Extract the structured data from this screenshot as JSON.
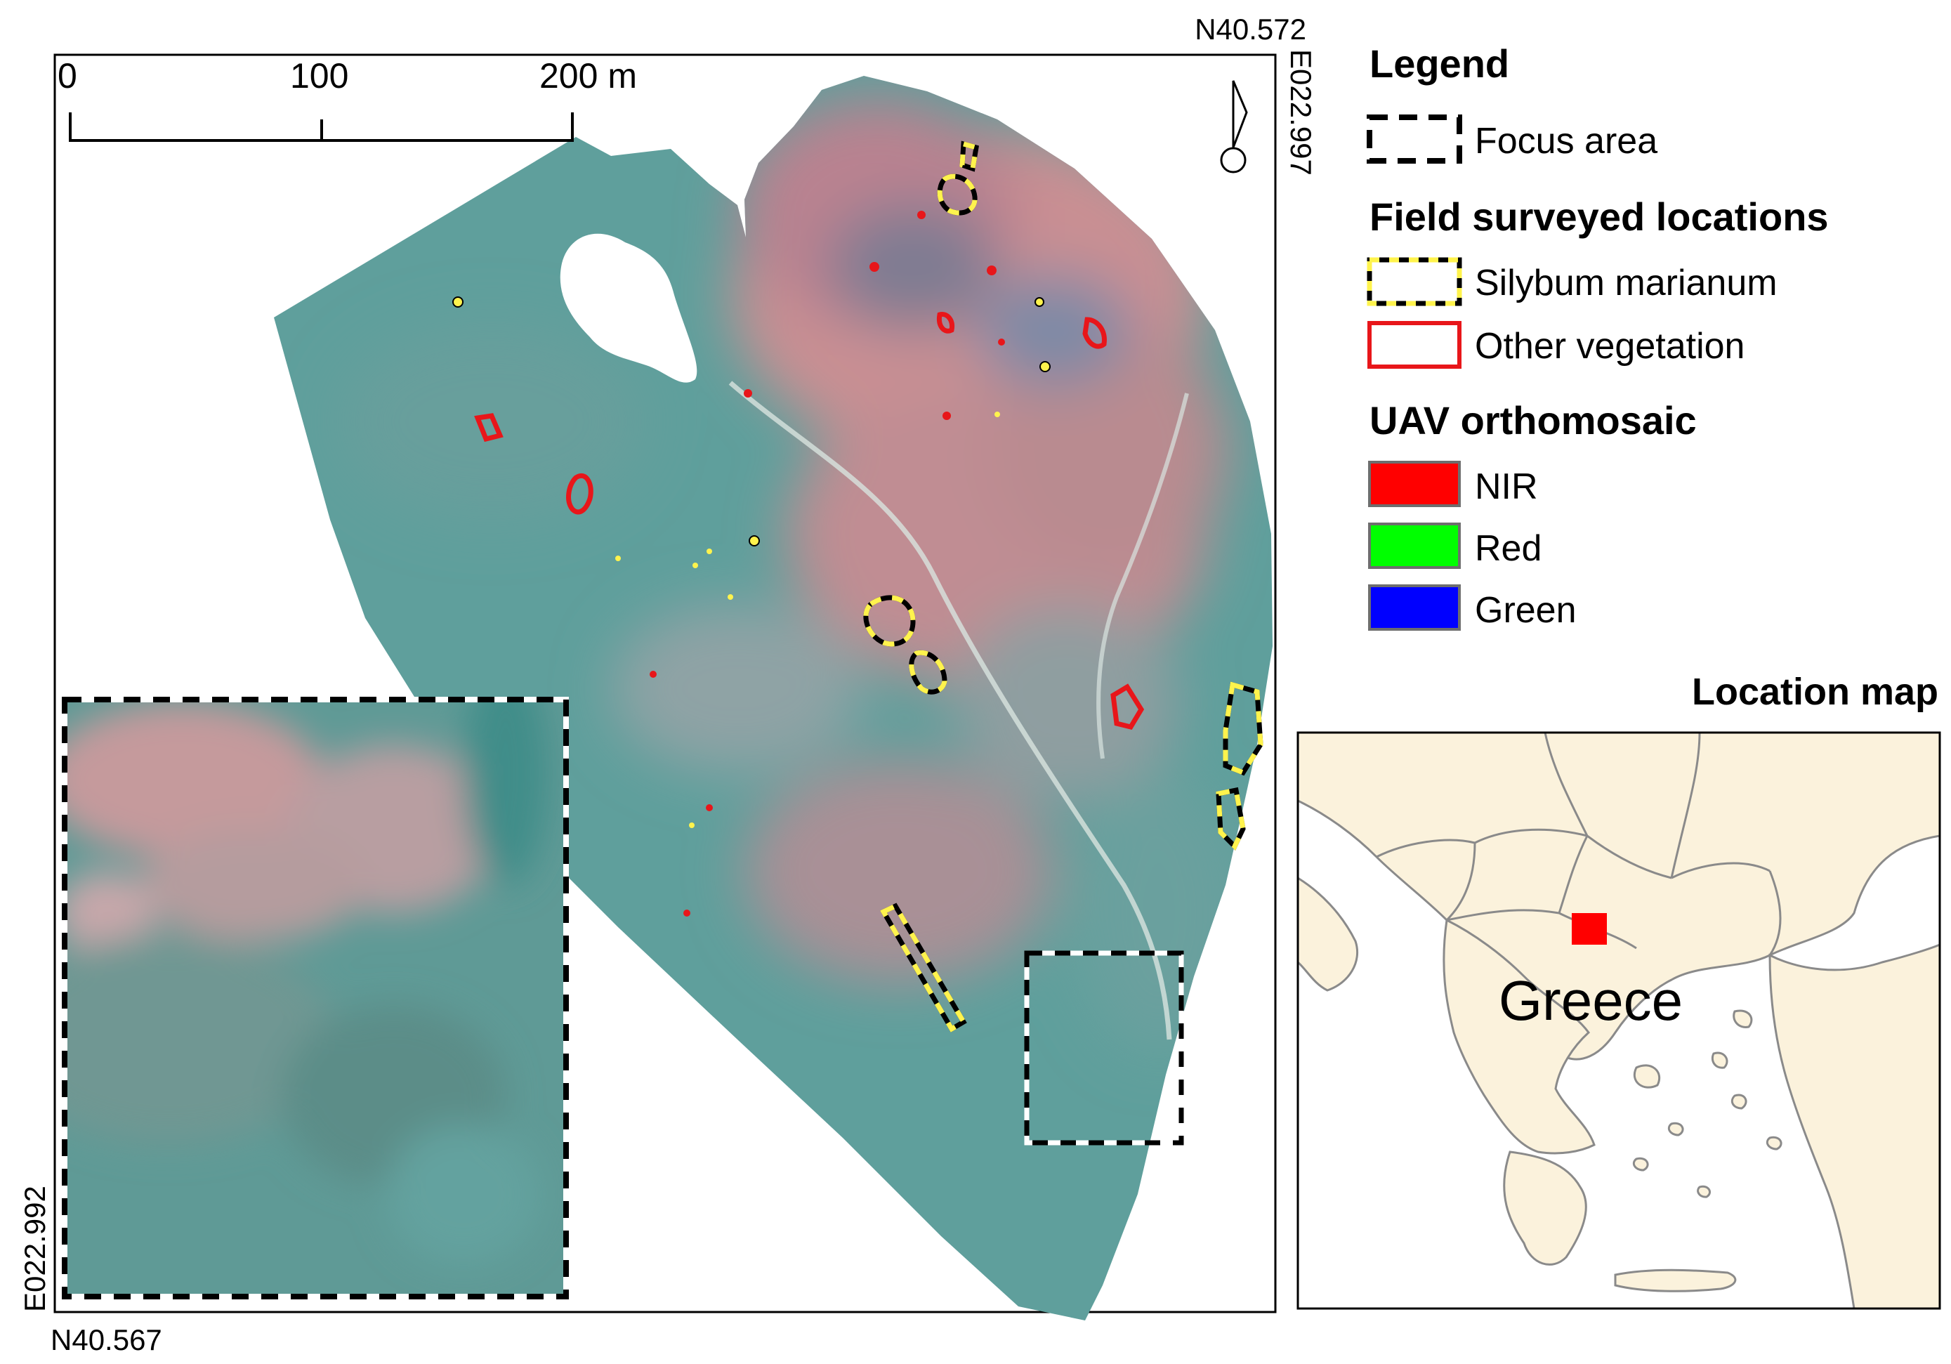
{
  "coords": {
    "top_lat": "N40.572",
    "right_lon": "E022.997",
    "bottom_lat": "N40.567",
    "left_lon": "E022.992"
  },
  "scale_bar": {
    "labels": [
      "0",
      "100",
      "200 m"
    ],
    "values": [
      0,
      100,
      200
    ]
  },
  "legend": {
    "title": "Legend",
    "focus_area_label": "Focus area",
    "field_title": "Field surveyed locations",
    "silybum_label": "Silybum marianum",
    "other_veg_label": "Other vegetation",
    "uav_title": "UAV orthomosaic",
    "bands": [
      {
        "label": "NIR",
        "color": "#ff0000"
      },
      {
        "label": "Red",
        "color": "#00ff00"
      },
      {
        "label": "Green",
        "color": "#0000ff"
      }
    ]
  },
  "location_map": {
    "title": "Location map",
    "country_label": "Greece",
    "land_color": "#fbf2dc",
    "marker_color": "#ff0000"
  },
  "colors": {
    "orthomosaic_teal": "#5f9f9c",
    "orthomosaic_pink": "#c98f93",
    "silybum_dash": "#fff34d",
    "other_veg": "#e8161a"
  }
}
